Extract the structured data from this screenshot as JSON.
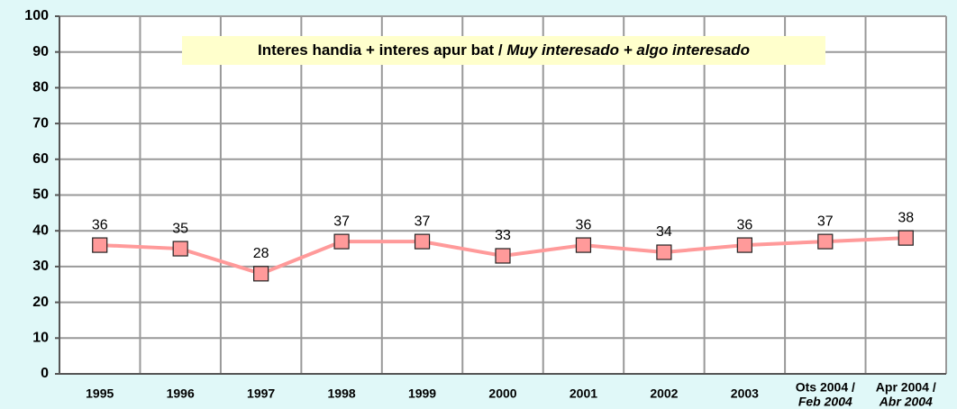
{
  "chart_data": {
    "type": "line",
    "title": [
      "Interes handia + interes apur bat / ",
      "Muy interesado + algo interesado"
    ],
    "categories": [
      "1995",
      "1996",
      "1997",
      "1998",
      "1999",
      "2000",
      "2001",
      "2002",
      "2003",
      [
        "Ots 2004 /",
        "Feb 2004"
      ],
      [
        "Apr 2004 /",
        "Abr 2004"
      ]
    ],
    "series": [
      {
        "color": "#ff9a9a",
        "values": [
          36,
          35,
          28,
          37,
          37,
          33,
          36,
          34,
          36,
          37,
          38
        ]
      }
    ],
    "ylim": [
      0,
      100
    ],
    "yticks": [
      0,
      10,
      20,
      30,
      40,
      50,
      60,
      70,
      80,
      90,
      100
    ],
    "grid": true
  }
}
